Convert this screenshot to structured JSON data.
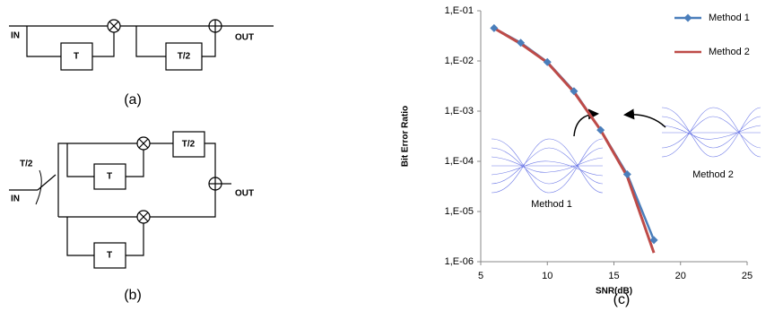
{
  "diagram_a": {
    "input": "IN",
    "delay": "T",
    "delay_half": "T/2",
    "output": "OUT",
    "caption": "(a)"
  },
  "diagram_b": {
    "switch": "T/2",
    "input": "IN",
    "delay_upper": "T",
    "delay_half": "T/2",
    "output": "OUT",
    "delay_lower": "T",
    "caption": "(b)"
  },
  "chart_data": {
    "type": "line",
    "caption": "(c)",
    "x_label": "SNR(dB)",
    "y_label": "Bit Error Ratio",
    "x": [
      6,
      8,
      10,
      12,
      14,
      16,
      18
    ],
    "series": [
      {
        "name": "Method 1",
        "color": "#4a7ebb",
        "marker": "diamond",
        "values": [
          0.045,
          0.023,
          0.0095,
          0.0025,
          0.00042,
          5.5e-05,
          2.7e-06
        ]
      },
      {
        "name": "Method 2",
        "color": "#be4b48",
        "values": [
          0.045,
          0.022,
          0.0093,
          0.0024,
          0.00042,
          5e-05,
          1.5e-06
        ]
      }
    ],
    "xlim": [
      5,
      25
    ],
    "xticks": [
      5,
      10,
      15,
      20,
      25
    ],
    "ylim": [
      1e-06,
      0.1
    ],
    "ylog": true,
    "yticks": [
      {
        "value": 1e-06,
        "label": "1,E-06"
      },
      {
        "value": 1e-05,
        "label": "1,E-05"
      },
      {
        "value": 0.0001,
        "label": "1,E-04"
      },
      {
        "value": 0.001,
        "label": "1,E-03"
      },
      {
        "value": 0.01,
        "label": "1,E-02"
      },
      {
        "value": 0.1,
        "label": "1,E-01"
      }
    ],
    "legend": "upper right",
    "grid": false,
    "annotations": [
      "Method 1",
      "Method 2"
    ]
  }
}
